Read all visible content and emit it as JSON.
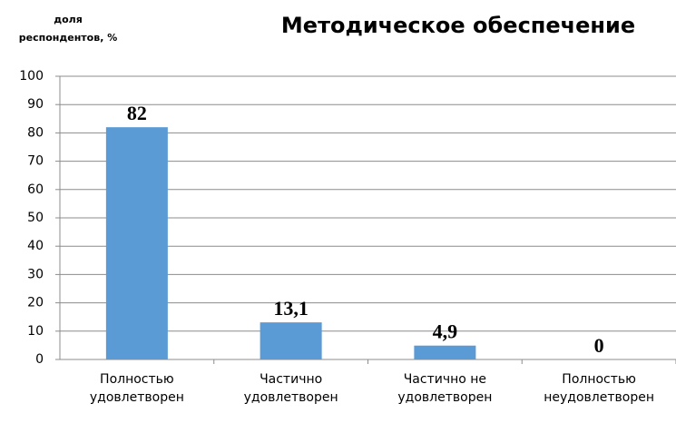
{
  "chart_data": {
    "type": "bar",
    "title": "Методическое обеспечение",
    "y_label": "доля\nреспондентов, %",
    "categories": [
      "Полностью\nудовлетворен",
      "Частично\nудовлетворен",
      "Частично не\nудовлетворен",
      "Полностью\nнеудовлетворен"
    ],
    "values": [
      82,
      13.1,
      4.9,
      0
    ],
    "value_labels": [
      "82",
      "13,1",
      "4,9",
      "0"
    ],
    "color": "#5b9bd5",
    "ylim": [
      0,
      100
    ],
    "yticks": [
      0,
      10,
      20,
      30,
      40,
      50,
      60,
      70,
      80,
      90,
      100
    ],
    "grid": true
  }
}
